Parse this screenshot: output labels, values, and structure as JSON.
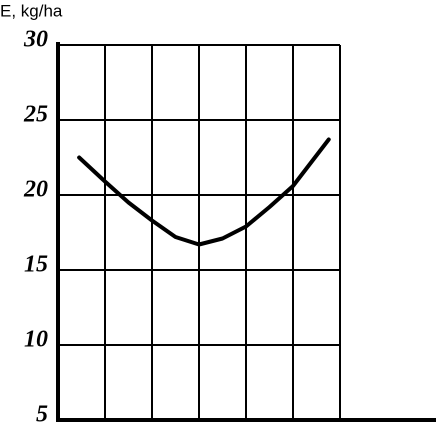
{
  "chart_data": {
    "type": "line",
    "y_label": "E, kg/ha",
    "x": [
      0.45,
      1,
      1.5,
      2,
      2.5,
      3,
      3.5,
      4,
      4.5,
      5,
      5.76
    ],
    "series": [
      {
        "color": "#000000",
        "values": [
          22.5,
          20.9,
          19.5,
          18.3,
          17.2,
          16.7,
          17.1,
          17.9,
          19.2,
          20.6,
          23.7
        ]
      }
    ],
    "xlim": [
      0,
      8
    ],
    "xticks": [
      1,
      2,
      3,
      4,
      5,
      6
    ],
    "ylim": [
      5,
      30
    ],
    "yticks": [
      5,
      10,
      15,
      20,
      25,
      30
    ],
    "grid": true
  }
}
